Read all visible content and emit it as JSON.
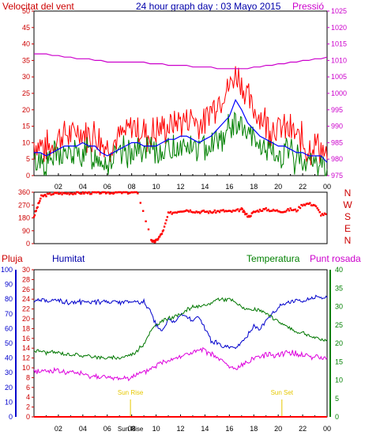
{
  "header": {
    "wind_speed_label": "Velocitat del vent",
    "title": "24 hour graph day : 03 Mayo 2015",
    "pressure_label": "Pressió"
  },
  "legend": {
    "rain": "Pluja",
    "humidity": "Humitat",
    "temperature": "Temperatura",
    "dew_point": "Punt rosada"
  },
  "colors": {
    "wind_gust": "#ff0000",
    "wind_avg": "#0000ff",
    "wind_speed": "#008000",
    "pressure": "#cc00cc",
    "direction": "#ff0000",
    "humidity": "#0000cc",
    "temperature": "#007700",
    "dew_point": "#dd00dd",
    "rain": "#ff0000",
    "sun_markers": "#e6c800",
    "left_axis": "#cc0000",
    "humidity_axis": "#0000cc",
    "temp_axis": "#008000"
  },
  "chart_data": [
    {
      "type": "line",
      "name": "wind-pressure",
      "x_tick_labels": [
        "02",
        "04",
        "06",
        "08",
        "10",
        "12",
        "14",
        "16",
        "18",
        "20",
        "22",
        "00"
      ],
      "ylim": [
        0,
        50
      ],
      "y_ticks": [
        "0",
        "5",
        "10",
        "15",
        "20",
        "25",
        "30",
        "35",
        "40",
        "45",
        "50"
      ],
      "y2lim": [
        975,
        1025
      ],
      "y2_ticks": [
        "975",
        "980",
        "985",
        "990",
        "995",
        "1000",
        "1005",
        "1010",
        "1015",
        "1020",
        "1025"
      ],
      "x_hours": [
        0,
        0.5,
        1,
        1.5,
        2,
        2.5,
        3,
        3.5,
        4,
        4.5,
        5,
        5.5,
        6,
        6.5,
        7,
        7.5,
        8,
        8.5,
        9,
        9.5,
        10,
        10.5,
        11,
        11.5,
        12,
        12.5,
        13,
        13.5,
        14,
        14.5,
        15,
        15.5,
        16,
        16.5,
        17,
        17.5,
        18,
        18.5,
        19,
        19.5,
        20,
        20.5,
        21,
        21.5,
        22,
        22.5,
        23,
        23.5,
        24
      ],
      "gust": [
        10,
        9,
        8,
        9,
        12,
        13,
        12,
        14,
        13,
        13,
        12,
        10,
        9,
        10,
        12,
        13,
        15,
        14,
        13,
        12,
        13,
        15,
        15,
        16,
        17,
        17,
        18,
        15,
        17,
        20,
        23,
        25,
        27,
        31,
        28,
        23,
        20,
        18,
        16,
        15,
        14,
        15,
        13,
        12,
        10,
        8,
        10,
        9,
        5
      ],
      "avg": [
        7,
        7,
        6,
        7,
        8,
        9,
        9,
        9,
        10,
        9,
        9,
        7,
        6,
        7,
        8,
        9,
        10,
        10,
        9,
        9,
        9,
        10,
        11,
        11,
        12,
        12,
        11,
        10,
        11,
        12,
        14,
        16,
        18,
        23,
        20,
        16,
        14,
        12,
        11,
        10,
        9,
        9,
        8,
        7,
        7,
        6,
        6,
        6,
        4
      ],
      "speed": [
        4,
        5,
        4,
        5,
        6,
        7,
        6,
        6,
        7,
        7,
        6,
        5,
        4,
        5,
        6,
        7,
        8,
        8,
        7,
        7,
        7,
        8,
        8,
        8,
        9,
        9,
        9,
        8,
        9,
        10,
        11,
        12,
        14,
        16,
        15,
        12,
        10,
        9,
        8,
        7,
        6,
        7,
        6,
        5,
        5,
        4,
        4,
        4,
        2
      ],
      "pressure": [
        1012,
        1012,
        1012,
        1011.5,
        1011.5,
        1011,
        1011,
        1010.5,
        1010.5,
        1010.5,
        1010,
        1010,
        1009.5,
        1009.5,
        1009.5,
        1009.5,
        1009.5,
        1009.5,
        1009.5,
        1009,
        1009,
        1009,
        1008.5,
        1008.5,
        1008.5,
        1008.5,
        1008,
        1008,
        1008,
        1008,
        1007.5,
        1007.5,
        1007.5,
        1007.5,
        1007.5,
        1007.5,
        1008,
        1008,
        1008.5,
        1008.5,
        1009,
        1009,
        1009.5,
        1009.5,
        1010,
        1010,
        1010.5,
        1010.5,
        1011
      ]
    },
    {
      "type": "scatter",
      "name": "wind-direction",
      "ylim": [
        0,
        360
      ],
      "y_ticks": [
        "0",
        "90",
        "180",
        "270",
        "360"
      ],
      "compass_labels": [
        "N",
        "W",
        "S",
        "E",
        "N"
      ],
      "x_hours": [
        0,
        0.3,
        0.6,
        1,
        1.5,
        2,
        2.5,
        3,
        3.5,
        4,
        4.5,
        5,
        5.5,
        6,
        6.5,
        7,
        7.5,
        8,
        8.5,
        9.6,
        9.8,
        10,
        10.3,
        10.6,
        11,
        11.5,
        12,
        12.5,
        13,
        13.5,
        14,
        14.5,
        15,
        15.5,
        16,
        16.5,
        17,
        17.3,
        17.6,
        18,
        18.5,
        19,
        19.5,
        20,
        20.5,
        21,
        21.5,
        22,
        22.5,
        23,
        23.5,
        24
      ],
      "direction": [
        190,
        260,
        330,
        340,
        350,
        352,
        352,
        354,
        354,
        356,
        356,
        356,
        358,
        358,
        358,
        358,
        358,
        358,
        358,
        30,
        10,
        20,
        50,
        90,
        210,
        220,
        230,
        235,
        228,
        222,
        225,
        220,
        226,
        230,
        224,
        228,
        240,
        210,
        190,
        220,
        235,
        240,
        232,
        230,
        226,
        240,
        232,
        275,
        280,
        270,
        205,
        205
      ]
    },
    {
      "type": "line",
      "name": "humidity-temperature",
      "x_tick_labels": [
        "02",
        "04",
        "06",
        "08",
        "10",
        "12",
        "14",
        "16",
        "18",
        "20",
        "22",
        "00"
      ],
      "rain_ylim": [
        0,
        30
      ],
      "rain_ticks": [
        "0",
        "2",
        "4",
        "6",
        "8",
        "10",
        "12",
        "14",
        "16",
        "18",
        "20",
        "22",
        "24",
        "26",
        "28",
        "30"
      ],
      "humidity_ylim": [
        0,
        100
      ],
      "humidity_ticks": [
        "0",
        "10",
        "20",
        "30",
        "40",
        "50",
        "60",
        "70",
        "80",
        "90",
        "100"
      ],
      "temp_ylim": [
        0,
        40
      ],
      "temp_ticks": [
        "0",
        "5",
        "10",
        "15",
        "20",
        "25",
        "30",
        "35",
        "40"
      ],
      "sun_rise_label": "Sun Rise",
      "sun_set_label": "Sun Set",
      "sunrise_axis_label": "Sun Rise",
      "sunrise_hour": 7.9,
      "sunset_hour": 20.3,
      "x_hours": [
        0,
        0.5,
        1,
        1.5,
        2,
        2.5,
        3,
        3.5,
        4,
        4.5,
        5,
        5.5,
        6,
        6.5,
        7,
        7.5,
        8,
        8.5,
        9,
        9.5,
        10,
        10.5,
        11,
        11.5,
        12,
        12.5,
        13,
        13.5,
        14,
        14.5,
        15,
        15.5,
        16,
        16.5,
        17,
        17.5,
        18,
        18.5,
        19,
        19.5,
        20,
        20.5,
        21,
        21.5,
        22,
        22.5,
        23,
        23.5,
        24
      ],
      "humidity": [
        79,
        79,
        79,
        79,
        79,
        78,
        78,
        78,
        78,
        78,
        78,
        78,
        78,
        78,
        78,
        78,
        78,
        78,
        78,
        72,
        62,
        58,
        66,
        64,
        70,
        68,
        65,
        68,
        60,
        52,
        50,
        48,
        47,
        46,
        50,
        55,
        62,
        60,
        65,
        70,
        75,
        77,
        78,
        79,
        79,
        80,
        81,
        81,
        81
      ],
      "temperature": [
        18,
        18,
        17.5,
        17.5,
        17.5,
        17,
        17,
        17,
        16.5,
        16.5,
        16.5,
        16,
        16,
        16,
        16,
        16.5,
        17,
        18,
        20,
        23,
        25,
        26,
        27,
        27,
        28,
        29,
        30,
        30,
        30,
        31,
        32,
        32,
        32,
        31,
        30,
        29,
        29,
        29,
        28,
        27,
        26,
        25,
        24,
        23,
        23,
        22,
        21.5,
        21,
        21
      ],
      "dew_point": [
        12.5,
        12.5,
        12.5,
        12.5,
        12.5,
        12,
        12,
        12,
        11.5,
        11,
        11,
        11,
        10.5,
        10.5,
        10.5,
        10.5,
        11,
        11.5,
        12,
        13,
        14,
        15,
        15.5,
        16,
        16.5,
        17,
        17.5,
        18,
        18,
        17,
        16,
        15,
        13.5,
        13,
        14,
        15,
        16,
        16.5,
        17,
        17,
        17,
        17.5,
        17.5,
        17,
        17,
        16.5,
        16.5,
        16,
        16
      ],
      "rain": [
        0,
        0,
        0,
        0,
        0,
        0,
        0,
        0,
        0,
        0,
        0,
        0,
        0,
        0,
        0,
        0,
        0,
        0,
        0,
        0,
        0,
        0,
        0,
        0,
        0,
        0,
        0,
        0,
        0,
        0,
        0,
        0,
        0,
        0,
        0,
        0,
        0,
        0,
        0,
        0,
        0,
        0,
        0,
        0,
        0,
        0,
        0,
        0,
        0
      ]
    }
  ]
}
